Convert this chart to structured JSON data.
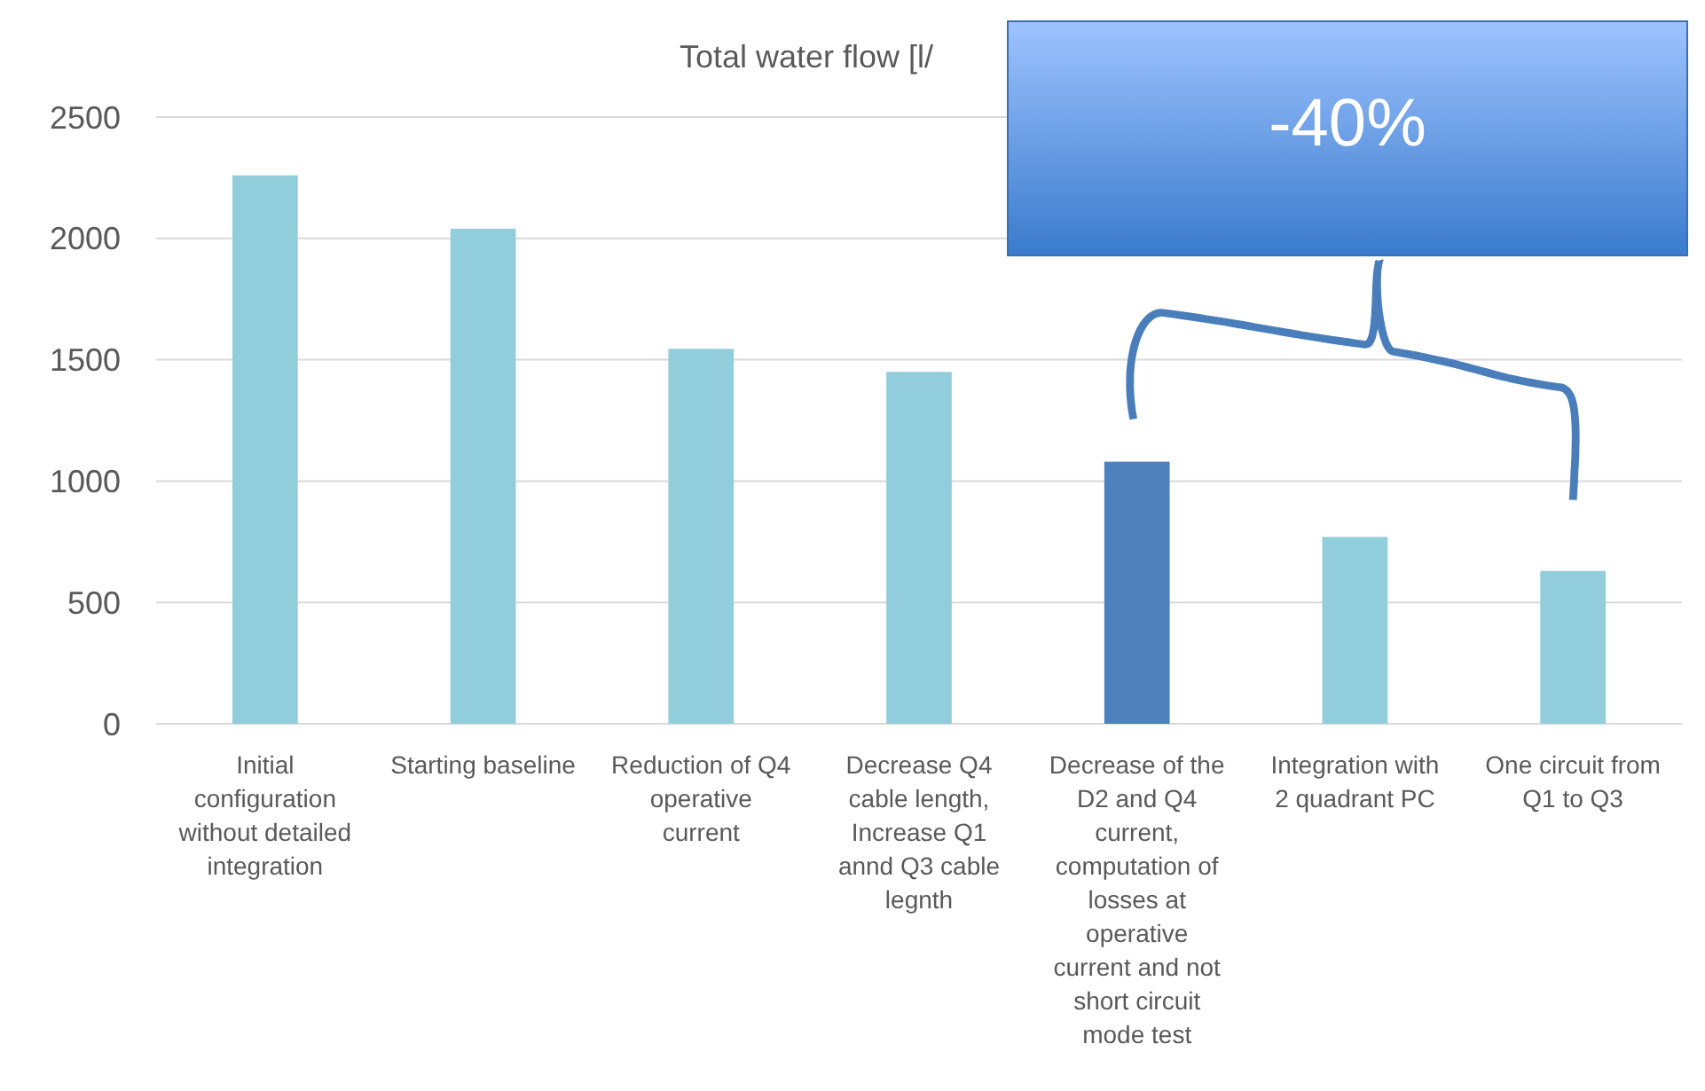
{
  "chart_data": {
    "type": "bar",
    "title": "Total water flow [l/",
    "categories": [
      "Initial configuration without detailed integration",
      "Starting baseline",
      "Reduction of Q4 operative current",
      "Decrease Q4 cable length, Increase Q1 annd Q3 cable legnth",
      "Decrease of the D2 and Q4 current, computation of losses at operative current and not short circuit mode test",
      "Integration with 2 quadrant PC",
      "One circuit from Q1 to Q3"
    ],
    "values": [
      2260,
      2040,
      1545,
      1450,
      1080,
      770,
      630
    ],
    "colors": [
      "#92cddc",
      "#92cddc",
      "#92cddc",
      "#92cddc",
      "#4f81bd",
      "#92cddc",
      "#92cddc"
    ],
    "ylim": [
      0,
      2500
    ],
    "yticks": [
      0,
      500,
      1000,
      1500,
      2000,
      2500
    ],
    "grid": "y",
    "annotations": [
      "-40%"
    ]
  }
}
